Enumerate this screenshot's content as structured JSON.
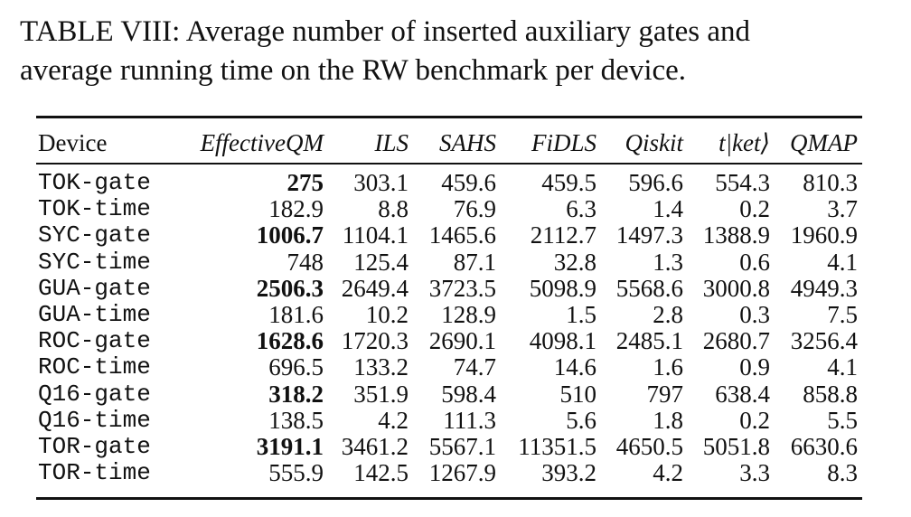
{
  "caption": {
    "line1": "TABLE VIII: Average number of inserted auxiliary gates and",
    "line2": "average running time on the RW benchmark per device."
  },
  "table": {
    "headers": [
      "Device",
      "EffectiveQM",
      "ILS",
      "SAHS",
      "FiDLS",
      "Qiskit",
      "t|ket⟩",
      "QMAP"
    ],
    "rows": [
      {
        "device": "TOK-gate",
        "values": [
          "275",
          "303.1",
          "459.6",
          "459.5",
          "596.6",
          "554.3",
          "810.3"
        ],
        "bold": [
          true,
          false,
          false,
          false,
          false,
          false,
          false
        ]
      },
      {
        "device": "TOK-time",
        "values": [
          "182.9",
          "8.8",
          "76.9",
          "6.3",
          "1.4",
          "0.2",
          "3.7"
        ],
        "bold": [
          false,
          false,
          false,
          false,
          false,
          false,
          false
        ]
      },
      {
        "device": "SYC-gate",
        "values": [
          "1006.7",
          "1104.1",
          "1465.6",
          "2112.7",
          "1497.3",
          "1388.9",
          "1960.9"
        ],
        "bold": [
          true,
          false,
          false,
          false,
          false,
          false,
          false
        ]
      },
      {
        "device": "SYC-time",
        "values": [
          "748",
          "125.4",
          "87.1",
          "32.8",
          "1.3",
          "0.6",
          "4.1"
        ],
        "bold": [
          false,
          false,
          false,
          false,
          false,
          false,
          false
        ]
      },
      {
        "device": "GUA-gate",
        "values": [
          "2506.3",
          "2649.4",
          "3723.5",
          "5098.9",
          "5568.6",
          "3000.8",
          "4949.3"
        ],
        "bold": [
          true,
          false,
          false,
          false,
          false,
          false,
          false
        ]
      },
      {
        "device": "GUA-time",
        "values": [
          "181.6",
          "10.2",
          "128.9",
          "1.5",
          "2.8",
          "0.3",
          "7.5"
        ],
        "bold": [
          false,
          false,
          false,
          false,
          false,
          false,
          false
        ]
      },
      {
        "device": "ROC-gate",
        "values": [
          "1628.6",
          "1720.3",
          "2690.1",
          "4098.1",
          "2485.1",
          "2680.7",
          "3256.4"
        ],
        "bold": [
          true,
          false,
          false,
          false,
          false,
          false,
          false
        ]
      },
      {
        "device": "ROC-time",
        "values": [
          "696.5",
          "133.2",
          "74.7",
          "14.6",
          "1.6",
          "0.9",
          "4.1"
        ],
        "bold": [
          false,
          false,
          false,
          false,
          false,
          false,
          false
        ]
      },
      {
        "device": "Q16-gate",
        "values": [
          "318.2",
          "351.9",
          "598.4",
          "510",
          "797",
          "638.4",
          "858.8"
        ],
        "bold": [
          true,
          false,
          false,
          false,
          false,
          false,
          false
        ]
      },
      {
        "device": "Q16-time",
        "values": [
          "138.5",
          "4.2",
          "111.3",
          "5.6",
          "1.8",
          "0.2",
          "5.5"
        ],
        "bold": [
          false,
          false,
          false,
          false,
          false,
          false,
          false
        ]
      },
      {
        "device": "TOR-gate",
        "values": [
          "3191.1",
          "3461.2",
          "5567.1",
          "11351.5",
          "4650.5",
          "5051.8",
          "6630.6"
        ],
        "bold": [
          true,
          false,
          false,
          false,
          false,
          false,
          false
        ]
      },
      {
        "device": "TOR-time",
        "values": [
          "555.9",
          "142.5",
          "1267.9",
          "393.2",
          "4.2",
          "3.3",
          "8.3"
        ],
        "bold": [
          false,
          false,
          false,
          false,
          false,
          false,
          false
        ]
      }
    ]
  }
}
